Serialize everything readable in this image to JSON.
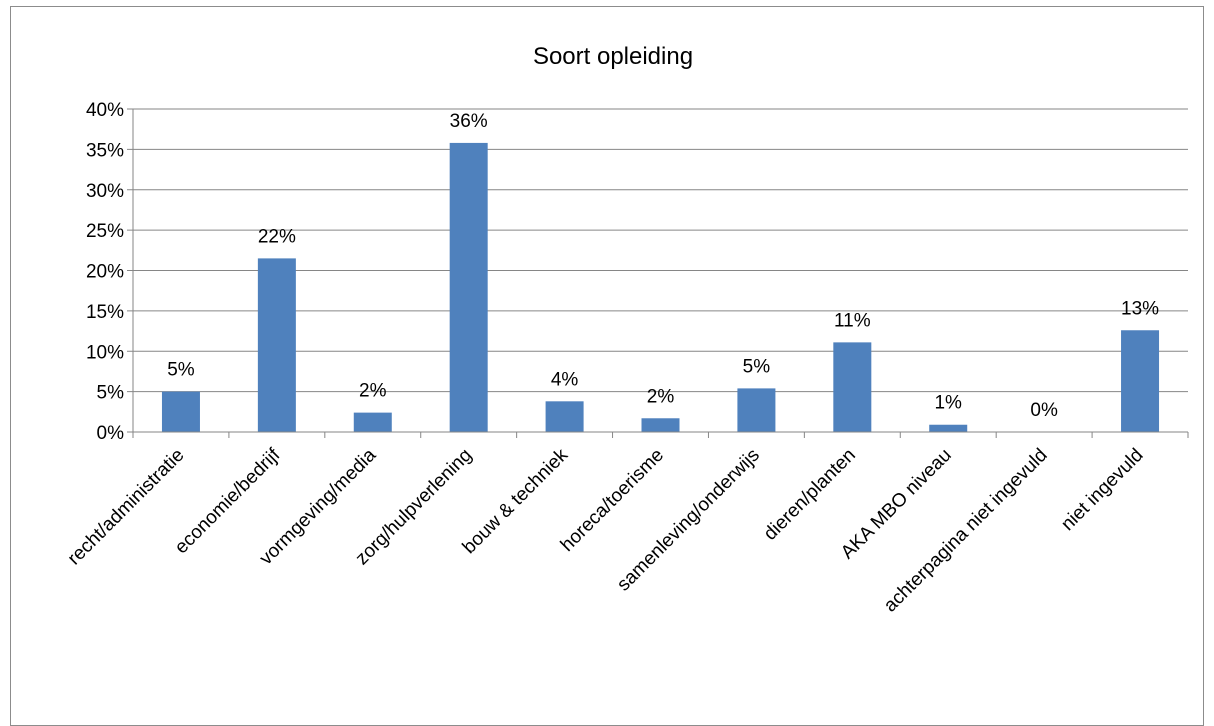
{
  "chart_data": {
    "type": "bar",
    "title": "Soort opleiding",
    "categories": [
      "recht/administratie",
      "economie/bedrijf",
      "vormgeving/media",
      "zorg/hulpverlening",
      "bouw & techniek",
      "horeca/toerisme",
      "samenleving/onderwijs",
      "dieren/planten",
      "AKA MBO niveau",
      "achterpagina niet ingevuld",
      "niet ingevuld"
    ],
    "values": [
      5.0,
      21.5,
      2.4,
      35.8,
      3.8,
      1.7,
      5.4,
      11.1,
      0.9,
      0.0,
      12.6
    ],
    "data_labels": [
      "5%",
      "22%",
      "2%",
      "36%",
      "4%",
      "2%",
      "5%",
      "11%",
      "1%",
      "0%",
      "13%"
    ],
    "y_ticks": [
      "0%",
      "5%",
      "10%",
      "15%",
      "20%",
      "25%",
      "30%",
      "35%",
      "40%"
    ],
    "ylim": [
      0,
      40
    ],
    "grid": true,
    "bar_color": "#4f81bd"
  }
}
